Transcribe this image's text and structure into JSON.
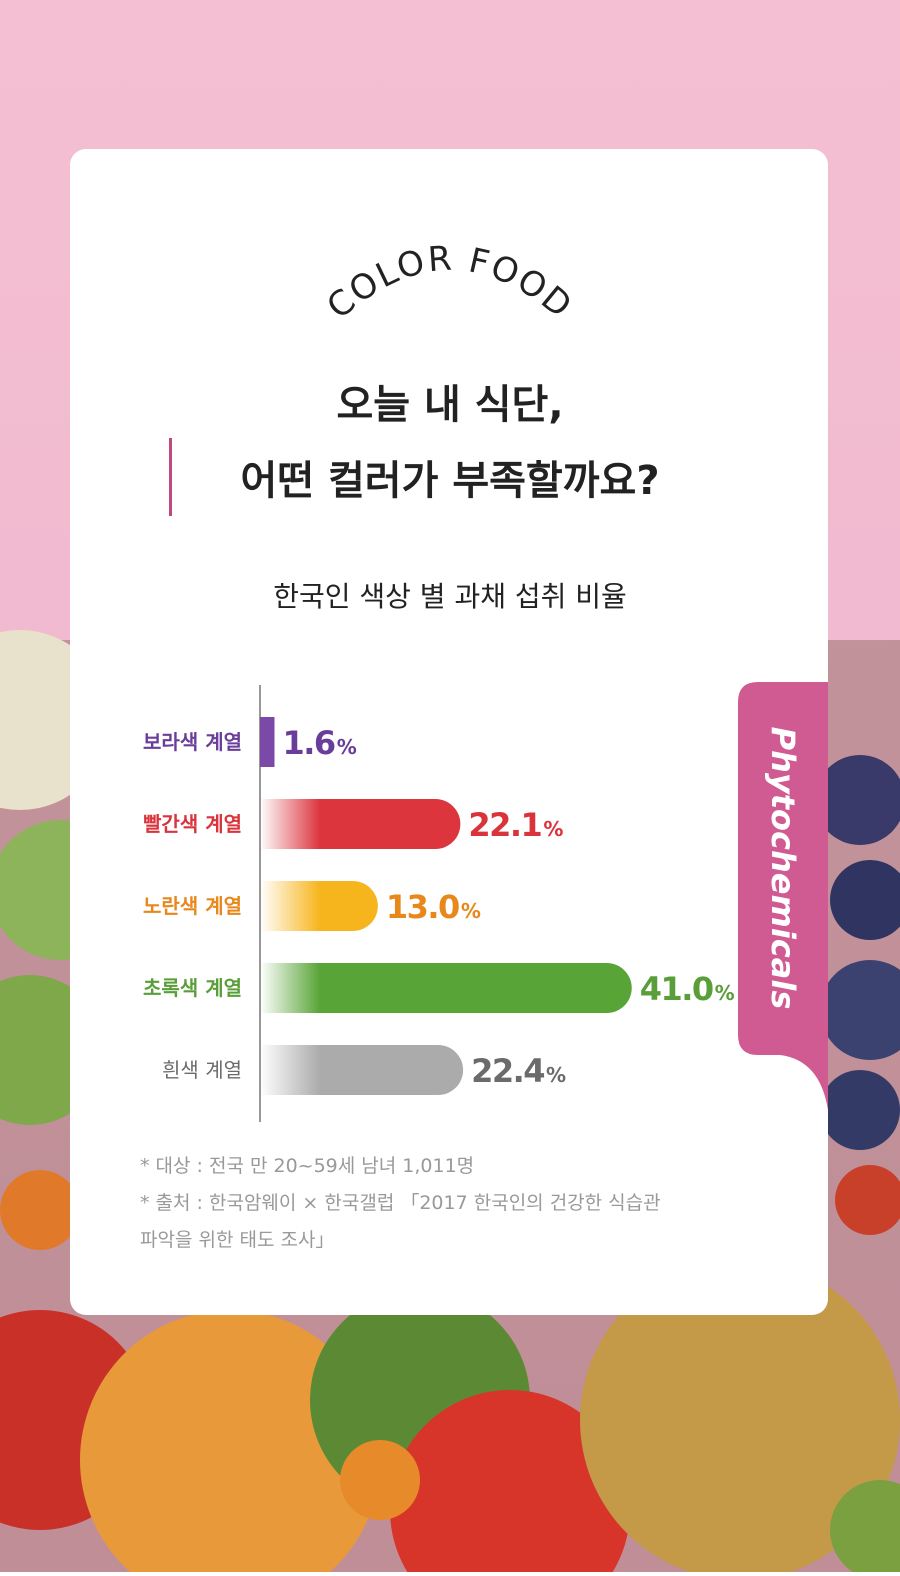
{
  "chart_data": {
    "type": "bar",
    "brand": "COLOR FOOD",
    "title": [
      "오늘 내 식단,",
      "어떤 컬러가 부족할까요?"
    ],
    "subtitle": "한국인 색상 별 과채 섭취 비율",
    "side_label": "Phytochemicals",
    "categories": [
      "보라색 계열",
      "빨간색 계열",
      "노란색 계열",
      "초록색 계열",
      "흰색 계열"
    ],
    "values": [
      1.6,
      22.1,
      13.0,
      41.0,
      22.4
    ],
    "value_labels": [
      "1.6%",
      "22.1%",
      "13.0%",
      "41.0%",
      "22.4%"
    ],
    "colors": [
      "#7b4aa9",
      "#dc353e",
      "#f7b51d",
      "#59a437",
      "#ababab"
    ],
    "label_colors": [
      "#6a3d9a",
      "#d9333b",
      "#e8871a",
      "#5a9e3a",
      "#6b6b6b"
    ],
    "xlim": [
      0,
      45
    ],
    "notes": [
      "* 대상 : 전국 만 20~59세 남녀 1,011명",
      "* 출처 : 한국암웨이 × 한국갤럽 「2017 한국인의 건강한 식습관",
      "파악을 위한 태도 조사」"
    ]
  }
}
